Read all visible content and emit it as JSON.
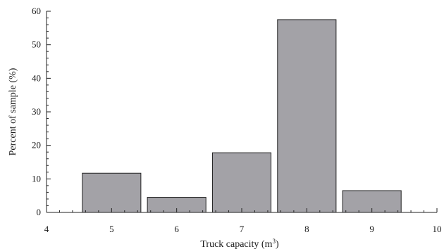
{
  "chart_data": {
    "type": "bar",
    "xlabel": "Truck capacity (m",
    "xlabel_superscript": "3",
    "xlabel_suffix": ")",
    "ylabel": "Percent of sample (%)",
    "xlim": [
      4,
      10
    ],
    "ylim": [
      0,
      60
    ],
    "xticks": [
      4,
      5,
      6,
      7,
      8,
      9,
      10
    ],
    "yticks": [
      0,
      10,
      20,
      30,
      40,
      50,
      60
    ],
    "x": [
      5,
      6,
      7,
      8,
      9
    ],
    "values": [
      11.7,
      4.5,
      17.8,
      57.5,
      6.5
    ],
    "bar_width": 0.9,
    "grid": false,
    "colors": {
      "bar_fill": "#a3a2a7",
      "bar_stroke": "#222222",
      "axis": "#222222"
    }
  }
}
